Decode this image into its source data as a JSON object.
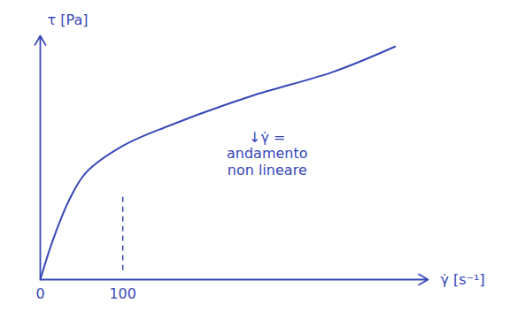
{
  "chart_data": {
    "type": "line",
    "y_label": "τ [Pa]",
    "x_label": "γ̇ [s⁻¹]",
    "x": [
      0,
      15,
      35,
      55,
      100,
      155,
      255,
      355,
      430
    ],
    "values": [
      0,
      43,
      88,
      118,
      148,
      170,
      203,
      230,
      258
    ],
    "color": "#3848b8",
    "xlim": [
      0,
      470
    ],
    "ylim": [
      0,
      270
    ],
    "xticks": [
      0,
      100
    ],
    "yticks": [],
    "tick_labels": "x",
    "grid": false,
    "reference_line": {
      "x": 100,
      "y": [
        10,
        95
      ],
      "line_style": "dashed"
    },
    "annotation": {
      "lines": [
        "↓γ̇ =",
        "andamento",
        "non lineare"
      ],
      "x": 275,
      "y": 165
    }
  }
}
